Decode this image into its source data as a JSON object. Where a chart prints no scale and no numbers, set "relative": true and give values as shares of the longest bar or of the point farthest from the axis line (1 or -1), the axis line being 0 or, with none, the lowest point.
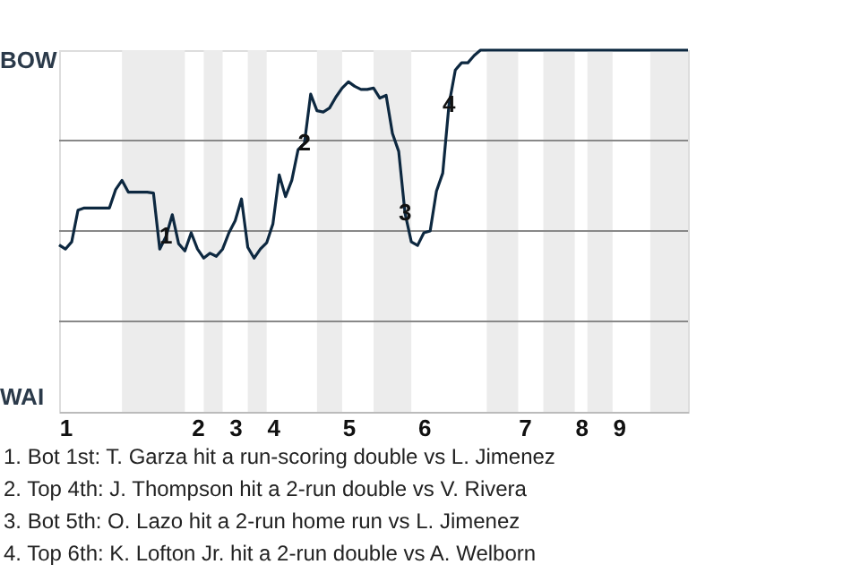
{
  "chart_data": {
    "type": "line",
    "relative": true,
    "marker": "none",
    "line_style": "solid",
    "ref_lines": [
      {
        "axis": "y",
        "value": 0.5,
        "color": "#888888"
      },
      {
        "axis": "y",
        "value": 0,
        "color": "#888888"
      },
      {
        "axis": "y",
        "value": -0.5,
        "color": "#888888"
      }
    ],
    "categories": [
      null,
      "1",
      null,
      null,
      null,
      null,
      null,
      null,
      null,
      null,
      null,
      null,
      null,
      null,
      null,
      null,
      null,
      null,
      null,
      null,
      null,
      null,
      "2",
      null,
      null,
      null,
      null,
      null,
      "3",
      null,
      null,
      null,
      null,
      null,
      "4",
      null,
      null,
      null,
      null,
      null,
      null,
      null,
      null,
      null,
      null,
      null,
      "5",
      null,
      null,
      null,
      null,
      null,
      null,
      null,
      null,
      null,
      null,
      null,
      "6",
      null,
      null,
      null,
      null,
      null,
      null,
      null,
      null,
      null,
      null,
      null,
      null,
      null,
      null,
      null,
      "7",
      null,
      null,
      null,
      null,
      null,
      null,
      null,
      null,
      "8",
      null,
      null,
      null,
      null,
      null,
      "9",
      null,
      null,
      null,
      null,
      null,
      null,
      null,
      null,
      null,
      null,
      null
    ],
    "series": [
      {
        "color": "#0d2840",
        "values": [
          -0.077,
          -0.1,
          -0.06,
          0.115,
          0.127,
          0.127,
          0.127,
          0.127,
          0.127,
          0.23,
          0.28,
          0.215,
          0.215,
          0.215,
          0.215,
          0.21,
          -0.1,
          -0.03,
          0.09,
          -0.07,
          -0.11,
          -0.01,
          -0.1,
          -0.15,
          -0.123,
          -0.14,
          -0.1,
          -0.01,
          0.057,
          0.177,
          -0.09,
          -0.15,
          -0.1,
          -0.065,
          0.04,
          0.31,
          0.19,
          0.28,
          0.45,
          0.483,
          0.757,
          0.665,
          0.658,
          0.68,
          0.74,
          0.79,
          0.825,
          0.8,
          0.783,
          0.783,
          0.79,
          0.735,
          0.75,
          0.54,
          0.44,
          0.1,
          -0.06,
          -0.08,
          -0.01,
          0,
          0.22,
          0.32,
          0.7,
          0.89,
          0.93,
          0.93,
          0.97,
          1,
          1,
          1,
          1,
          1,
          1,
          1,
          1,
          1,
          1,
          1,
          1,
          1,
          1,
          1,
          1,
          1,
          1,
          1,
          1,
          1,
          1,
          1,
          1,
          1,
          1,
          1,
          1,
          1,
          1,
          1,
          1,
          1,
          1
        ]
      }
    ],
    "annotations": [
      "BOW",
      "WAI",
      {
        "text": "1",
        "y": -0.03
      },
      {
        "text": "2",
        "y": 0.483
      },
      {
        "text": "3",
        "y": 0.1
      },
      {
        "text": "4",
        "y": 0.7
      },
      "1. Bot 1st: T. Garza hit a run-scoring double vs L. Jimenez",
      "2. Top 4th: J. Thompson hit a 2-run double vs V. Rivera",
      "3. Bot 5th: O. Lazo hit a 2-run home run vs L. Jimenez",
      "4. Top 6th: K. Lofton Jr. hit a 2-run double vs A. Welborn"
    ]
  }
}
